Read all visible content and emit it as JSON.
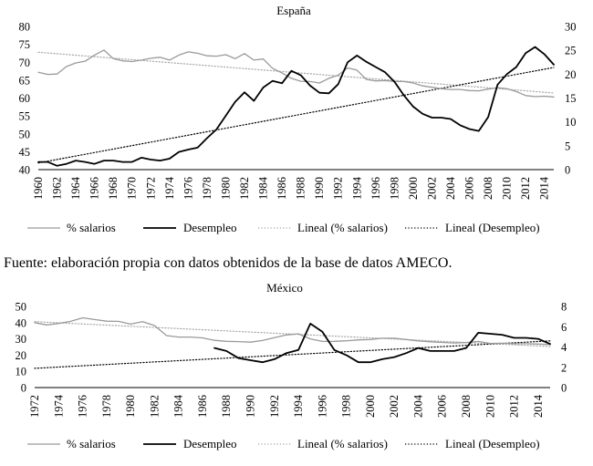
{
  "source_note": "Fuente: elaboración propia con datos obtenidos de la base de datos AMECO.",
  "chart_data": [
    {
      "type": "line",
      "title": "España",
      "x_label_years": [
        "1960",
        "1962",
        "1964",
        "1966",
        "1968",
        "1970",
        "1972",
        "1974",
        "1976",
        "1978",
        "1980",
        "1982",
        "1984",
        "1986",
        "1988",
        "1990",
        "1992",
        "1994",
        "1996",
        "1998",
        "2000",
        "2002",
        "2004",
        "2006",
        "2008",
        "2010",
        "2012",
        "2014"
      ],
      "ylim_left": [
        40,
        80
      ],
      "yticks_left": [
        "40",
        "45",
        "50",
        "55",
        "60",
        "65",
        "70",
        "75",
        "80"
      ],
      "ylim_right": [
        0,
        30
      ],
      "yticks_right": [
        "0",
        "5",
        "10",
        "15",
        "20",
        "25",
        "30"
      ],
      "series": [
        {
          "name": "% salarios",
          "axis": "left",
          "style": "gray",
          "x": [
            1960,
            1961,
            1962,
            1963,
            1964,
            1965,
            1966,
            1967,
            1968,
            1969,
            1970,
            1971,
            1972,
            1973,
            1974,
            1975,
            1976,
            1977,
            1978,
            1979,
            1980,
            1981,
            1982,
            1983,
            1984,
            1985,
            1986,
            1987,
            1988,
            1989,
            1990,
            1991,
            1992,
            1993,
            1994,
            1995,
            1996,
            1997,
            1998,
            1999,
            2000,
            2001,
            2002,
            2003,
            2004,
            2005,
            2006,
            2007,
            2008,
            2009,
            2010,
            2011,
            2012,
            2013,
            2014,
            2015
          ],
          "values": [
            67.2,
            66.6,
            66.7,
            68.8,
            69.8,
            70.3,
            72.0,
            73.4,
            71.0,
            70.4,
            70.2,
            70.6,
            71.1,
            71.4,
            70.6,
            72.0,
            72.9,
            72.5,
            71.8,
            71.7,
            72.1,
            71.0,
            72.4,
            70.6,
            70.9,
            68.3,
            67.0,
            65.5,
            64.7,
            64.6,
            64.2,
            65.5,
            66.4,
            68.4,
            67.8,
            65.2,
            64.8,
            64.9,
            64.6,
            64.6,
            64.2,
            63.4,
            63.0,
            62.6,
            62.4,
            62.4,
            62.1,
            62.0,
            62.5,
            62.9,
            62.6,
            61.8,
            60.7,
            60.4,
            60.5,
            60.3
          ]
        },
        {
          "name": "Desempleo",
          "axis": "right",
          "style": "black",
          "x": [
            1960,
            1961,
            1962,
            1963,
            1964,
            1965,
            1966,
            1967,
            1968,
            1969,
            1970,
            1971,
            1972,
            1973,
            1974,
            1975,
            1976,
            1977,
            1978,
            1979,
            1980,
            1981,
            1982,
            1983,
            1984,
            1985,
            1986,
            1987,
            1988,
            1989,
            1990,
            1991,
            1992,
            1993,
            1994,
            1995,
            1996,
            1997,
            1998,
            1999,
            2000,
            2001,
            2002,
            2003,
            2004,
            2005,
            2006,
            2007,
            2008,
            2009,
            2010,
            2011,
            2012,
            2013,
            2014,
            2015
          ],
          "values": [
            1.6,
            1.6,
            0.8,
            1.2,
            1.9,
            1.6,
            1.2,
            1.9,
            1.9,
            1.6,
            1.6,
            2.5,
            2.1,
            1.9,
            2.3,
            3.7,
            4.2,
            4.6,
            6.6,
            8.4,
            11.3,
            14.2,
            16.2,
            14.4,
            17.2,
            18.6,
            18.1,
            20.7,
            19.8,
            17.6,
            16.1,
            16.0,
            17.9,
            22.5,
            23.9,
            22.6,
            21.5,
            20.4,
            18.4,
            15.6,
            13.2,
            11.7,
            10.9,
            10.9,
            10.6,
            9.3,
            8.5,
            8.1,
            11.0,
            17.8,
            20.0,
            21.5,
            24.4,
            25.7,
            24.2,
            22.0
          ]
        },
        {
          "name": "Lineal (% salarios)",
          "axis": "left",
          "style": "gray-dotted",
          "x": [
            1960,
            2015
          ],
          "values": [
            72.8,
            61.4
          ]
        },
        {
          "name": "Lineal (Desempleo)",
          "axis": "right",
          "style": "black-dotted",
          "x": [
            1960,
            2015
          ],
          "values": [
            1.4,
            21.4
          ]
        }
      ],
      "legend": [
        "% salarios",
        "Desempleo",
        "Lineal (% salarios)",
        "Lineal (Desempleo)"
      ]
    },
    {
      "type": "line",
      "title": "México",
      "x_label_years": [
        "1972",
        "1974",
        "1976",
        "1978",
        "1980",
        "1982",
        "1984",
        "1986",
        "1988",
        "1990",
        "1992",
        "1994",
        "1996",
        "1998",
        "2000",
        "2002",
        "2004",
        "2006",
        "2008",
        "2010",
        "2012",
        "2014"
      ],
      "ylim_left": [
        0,
        50
      ],
      "yticks_left": [
        "0",
        "10",
        "20",
        "30",
        "40",
        "50"
      ],
      "ylim_right": [
        0,
        8
      ],
      "yticks_right": [
        "0",
        "2",
        "4",
        "6",
        "8"
      ],
      "series": [
        {
          "name": "% salarios",
          "axis": "left",
          "style": "gray",
          "x": [
            1972,
            1973,
            1974,
            1975,
            1976,
            1977,
            1978,
            1979,
            1980,
            1981,
            1982,
            1983,
            1984,
            1985,
            1986,
            1987,
            1988,
            1989,
            1990,
            1991,
            1992,
            1993,
            1994,
            1995,
            1996,
            1997,
            1998,
            1999,
            2000,
            2001,
            2002,
            2003,
            2004,
            2005,
            2006,
            2007,
            2008,
            2009,
            2010,
            2011,
            2012,
            2013,
            2014,
            2015
          ],
          "values": [
            40.0,
            38.6,
            39.5,
            40.8,
            43.0,
            41.9,
            40.9,
            40.8,
            39.1,
            40.6,
            38.2,
            32.0,
            31.1,
            31.1,
            30.6,
            29.1,
            28.5,
            28.3,
            28.0,
            29.0,
            30.8,
            32.4,
            33.1,
            30.0,
            28.4,
            28.5,
            28.8,
            29.4,
            29.6,
            30.4,
            30.4,
            29.6,
            28.7,
            28.2,
            27.8,
            27.5,
            27.7,
            28.4,
            27.2,
            27.3,
            27.0,
            27.0,
            26.8,
            26.5
          ]
        },
        {
          "name": "Desempleo",
          "axis": "right",
          "style": "black",
          "x": [
            1987,
            1988,
            1989,
            1990,
            1991,
            1992,
            1993,
            1994,
            1995,
            1996,
            1997,
            1998,
            1999,
            2000,
            2001,
            2002,
            2003,
            2004,
            2005,
            2006,
            2007,
            2008,
            2009,
            2010,
            2011,
            2012,
            2013,
            2014,
            2015
          ],
          "values": [
            3.9,
            3.6,
            2.9,
            2.7,
            2.5,
            2.8,
            3.4,
            3.7,
            6.3,
            5.5,
            3.7,
            3.2,
            2.5,
            2.5,
            2.8,
            3.0,
            3.4,
            3.9,
            3.6,
            3.6,
            3.6,
            3.9,
            5.4,
            5.3,
            5.2,
            4.9,
            4.9,
            4.8,
            4.3
          ]
        },
        {
          "name": "Lineal (% salarios)",
          "axis": "left",
          "style": "gray-dotted",
          "x": [
            1972,
            2015
          ],
          "values": [
            40.6,
            25.3
          ]
        },
        {
          "name": "Lineal (Desempleo)",
          "axis": "right",
          "style": "black-dotted",
          "x": [
            1972,
            2015
          ],
          "values": [
            1.9,
            4.6
          ]
        }
      ],
      "legend": [
        "% salarios",
        "Desempleo",
        "Lineal (% salarios)",
        "Lineal (Desempleo)"
      ]
    }
  ]
}
